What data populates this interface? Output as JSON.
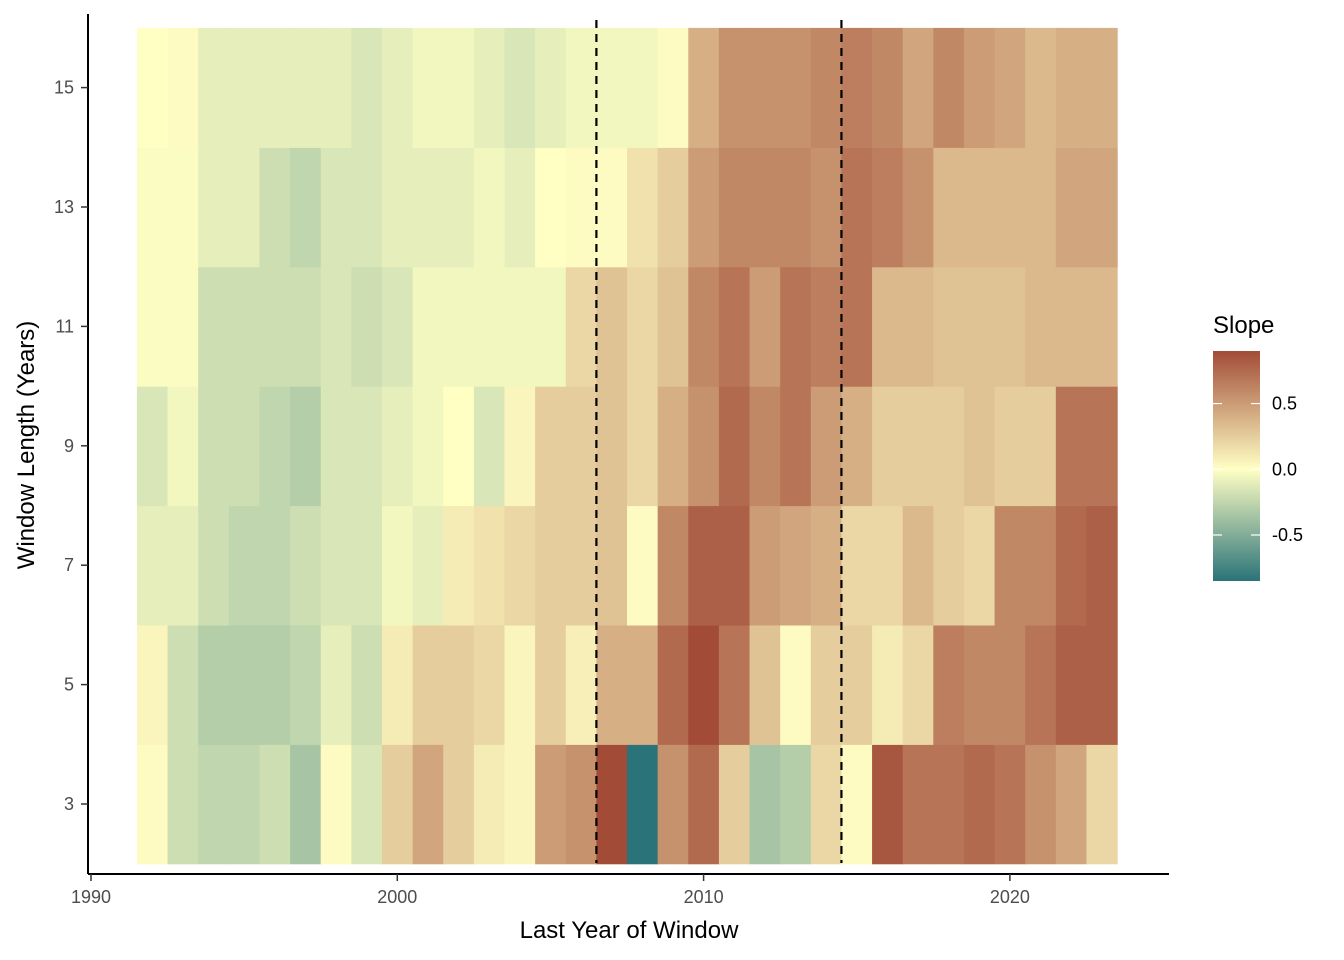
{
  "chart_data": {
    "type": "heatmap",
    "title": "",
    "xlabel": "Last Year of Window",
    "ylabel": "Window Length (Years)",
    "xlim": [
      1990,
      2025
    ],
    "ylim": [
      2,
      16
    ],
    "x_ticks": [
      1990,
      2000,
      2010,
      2020
    ],
    "y_ticks": [
      3,
      5,
      7,
      9,
      11,
      13,
      15
    ],
    "x_years": [
      1992,
      1993,
      1994,
      1995,
      1996,
      1997,
      1998,
      1999,
      2000,
      2001,
      2002,
      2003,
      2004,
      2005,
      2006,
      2007,
      2008,
      2009,
      2010,
      2011,
      2012,
      2013,
      2014,
      2015,
      2016,
      2017,
      2018,
      2019,
      2020,
      2021,
      2022,
      2023
    ],
    "rows": [
      {
        "window_length": 3,
        "values": [
          0.02,
          -0.2,
          -0.25,
          -0.25,
          -0.2,
          -0.35,
          0.02,
          -0.15,
          0.25,
          0.45,
          0.25,
          0.1,
          0.05,
          0.5,
          0.55,
          0.9,
          -0.85,
          0.55,
          0.75,
          0.25,
          -0.35,
          -0.3,
          0.2,
          0.02,
          0.85,
          0.7,
          0.7,
          0.75,
          0.7,
          0.55,
          0.45,
          0.2
        ]
      },
      {
        "window_length": 5,
        "values": [
          0.05,
          -0.2,
          -0.3,
          -0.3,
          -0.3,
          -0.25,
          -0.1,
          -0.2,
          0.1,
          0.25,
          0.25,
          0.2,
          0.05,
          0.25,
          0.08,
          0.4,
          0.4,
          0.75,
          0.9,
          0.7,
          0.3,
          0.02,
          0.25,
          0.25,
          0.1,
          0.2,
          0.65,
          0.6,
          0.6,
          0.7,
          0.8,
          0.8
        ]
      },
      {
        "window_length": 7,
        "values": [
          -0.1,
          -0.1,
          -0.2,
          -0.25,
          -0.25,
          -0.2,
          -0.15,
          -0.15,
          -0.05,
          -0.1,
          0.1,
          0.15,
          0.2,
          0.25,
          0.25,
          0.3,
          0.02,
          0.6,
          0.8,
          0.8,
          0.5,
          0.45,
          0.4,
          0.2,
          0.2,
          0.35,
          0.25,
          0.2,
          0.6,
          0.6,
          0.75,
          0.8
        ]
      },
      {
        "window_length": 9,
        "values": [
          -0.15,
          -0.05,
          -0.2,
          -0.2,
          -0.25,
          -0.3,
          -0.15,
          -0.15,
          -0.1,
          -0.05,
          0.0,
          -0.15,
          0.05,
          0.25,
          0.25,
          0.3,
          0.2,
          0.4,
          0.55,
          0.75,
          0.6,
          0.7,
          0.5,
          0.4,
          0.25,
          0.25,
          0.25,
          0.3,
          0.25,
          0.25,
          0.7,
          0.7
        ]
      },
      {
        "window_length": 11,
        "values": [
          -0.02,
          -0.02,
          -0.2,
          -0.2,
          -0.2,
          -0.2,
          -0.15,
          -0.2,
          -0.15,
          -0.05,
          -0.05,
          -0.05,
          -0.05,
          -0.05,
          0.2,
          0.3,
          0.2,
          0.3,
          0.6,
          0.7,
          0.5,
          0.7,
          0.65,
          0.7,
          0.35,
          0.35,
          0.3,
          0.3,
          0.3,
          0.35,
          0.35,
          0.35
        ]
      },
      {
        "window_length": 13,
        "values": [
          -0.02,
          -0.02,
          -0.1,
          -0.1,
          -0.2,
          -0.25,
          -0.15,
          -0.15,
          -0.1,
          -0.1,
          -0.1,
          -0.05,
          -0.1,
          0.0,
          0.02,
          0.02,
          0.15,
          0.25,
          0.5,
          0.6,
          0.6,
          0.6,
          0.55,
          0.7,
          0.65,
          0.55,
          0.35,
          0.35,
          0.35,
          0.35,
          0.45,
          0.45
        ]
      },
      {
        "window_length": 15,
        "values": [
          0.0,
          0.02,
          -0.1,
          -0.1,
          -0.1,
          -0.1,
          -0.1,
          -0.15,
          -0.1,
          -0.05,
          -0.05,
          -0.1,
          -0.15,
          -0.1,
          -0.05,
          -0.05,
          -0.05,
          0.02,
          0.4,
          0.55,
          0.55,
          0.55,
          0.6,
          0.65,
          0.6,
          0.45,
          0.6,
          0.5,
          0.45,
          0.35,
          0.4,
          0.4
        ]
      }
    ],
    "vlines": [
      2006.5,
      2014.5
    ],
    "legend": {
      "title": "Slope",
      "placement": "right",
      "breaks": [
        -0.5,
        0.0,
        0.5
      ],
      "break_labels": [
        "-0.5",
        "0.0",
        "0.5"
      ],
      "limits": [
        -0.85,
        0.9
      ]
    },
    "colors": {
      "low": "#2a7378",
      "mid": "#ffffc4",
      "high": "#a24c37"
    }
  }
}
